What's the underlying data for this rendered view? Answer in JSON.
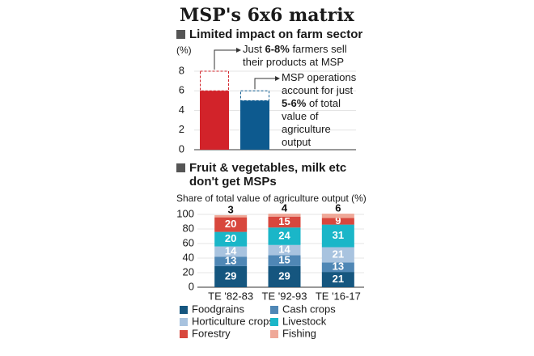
{
  "header": {
    "title": "MSP's 6x6 matrix"
  },
  "chart_data": [
    {
      "type": "bar",
      "title": "Limited impact on farm sector",
      "y_label": "(%)",
      "categories": [
        null,
        null
      ],
      "values": [
        6,
        5
      ],
      "upper_values": [
        8,
        6
      ],
      "colors": [
        "#d2232a",
        "#0d5a8f"
      ],
      "ylim": [
        0,
        8
      ],
      "yticks": [
        0,
        2,
        4,
        6,
        8
      ],
      "grid": true,
      "annotations": [
        {
          "lines": [
            [
              {
                "text": "Just "
              },
              {
                "text": "6-8%",
                "bold": true
              },
              {
                "text": " farmers sell"
              }
            ],
            [
              {
                "text": "their products at MSP"
              }
            ]
          ]
        },
        {
          "lines": [
            [
              {
                "text": "MSP operations"
              }
            ],
            [
              {
                "text": "account for just"
              }
            ],
            [
              {
                "text": "5-6%",
                "bold": true
              },
              {
                "text": " of total"
              }
            ],
            [
              {
                "text": "value of"
              }
            ],
            [
              {
                "text": "agriculture"
              }
            ],
            [
              {
                "text": "output"
              }
            ]
          ]
        }
      ]
    },
    {
      "type": "stacked_bar",
      "title": [
        "Fruit & vegetables, milk etc",
        "don't get MSPs"
      ],
      "subtitle": "Share of total value of agriculture output (%)",
      "categories": [
        "TE '82-83",
        "TE '92-93",
        "TE '16-17"
      ],
      "series": [
        {
          "name": "Foodgrains",
          "color": "#15567f",
          "values": [
            29,
            29,
            21
          ]
        },
        {
          "name": "Cash crops",
          "color": "#4f87b5",
          "values": [
            13,
            15,
            13
          ]
        },
        {
          "name": "Horticulture crops",
          "color": "#a8c3df",
          "values": [
            14,
            14,
            21
          ]
        },
        {
          "name": "Livestock",
          "color": "#1ab6c8",
          "values": [
            20,
            24,
            31
          ]
        },
        {
          "name": "Forestry",
          "color": "#d8473d",
          "values": [
            20,
            15,
            9
          ]
        },
        {
          "name": "Fishing",
          "color": "#efa898",
          "values": [
            3,
            4,
            6
          ]
        }
      ],
      "ylim": [
        0,
        100
      ],
      "yticks": [
        0,
        20,
        40,
        60,
        80,
        100
      ],
      "grid": true
    }
  ]
}
